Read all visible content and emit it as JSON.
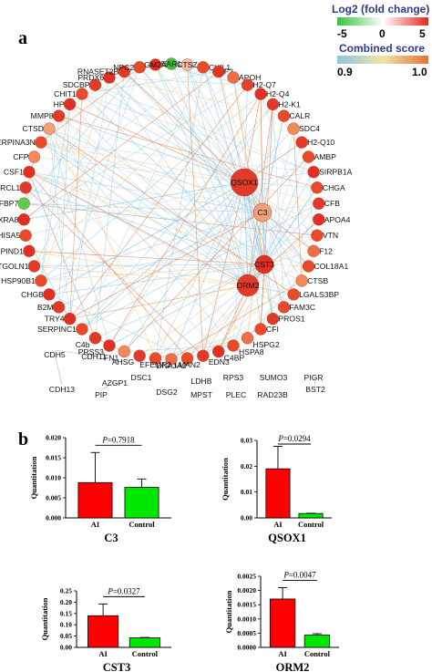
{
  "panel_a": {
    "label": "a",
    "legend": {
      "fold_title": "Log2 (fold change)",
      "fold_ticks": [
        "-5",
        "0",
        "5"
      ],
      "fold_colors": [
        "#35c23a",
        "#ffffff",
        "#e8261e"
      ],
      "score_title": "Combined score",
      "score_ticks": [
        "0.9",
        "1.0"
      ],
      "score_colors": [
        "#8cc5e3",
        "#f0e3a6",
        "#e7713a"
      ]
    },
    "ring_nodes": [
      {
        "label": "EAR1",
        "color": "#3cc33c"
      },
      {
        "label": "CTSZ",
        "color": "#f7c0a0"
      },
      {
        "label": "CHIL1",
        "color": "#e84a2a"
      },
      {
        "label": "F2",
        "color": "#e03425"
      },
      {
        "label": "APOH",
        "color": "#ee6e48"
      },
      {
        "label": "H2-Q7",
        "color": "#e8402a"
      },
      {
        "label": "H2-Q4",
        "color": "#e03025"
      },
      {
        "label": "H2-K1",
        "color": "#e23a28"
      },
      {
        "label": "CALR",
        "color": "#e84a2a"
      },
      {
        "label": "SDC4",
        "color": "#f08a5a"
      },
      {
        "label": "H2-Q10",
        "color": "#e23a28"
      },
      {
        "label": "AMBP",
        "color": "#e84a2a"
      },
      {
        "label": "SIRPB1A",
        "color": "#e03025"
      },
      {
        "label": "CHGA",
        "color": "#e84a2a"
      },
      {
        "label": "CFB",
        "color": "#e23a28"
      },
      {
        "label": "APOA4",
        "color": "#e03025"
      },
      {
        "label": "VTN",
        "color": "#e84a2a"
      },
      {
        "label": "F12",
        "color": "#ee6e48"
      },
      {
        "label": "COL18A1",
        "color": "#e84a2a"
      },
      {
        "label": "CTSB",
        "color": "#f08a5a"
      },
      {
        "label": "LGALS3BP",
        "color": "#e84a2a"
      },
      {
        "label": "FAM3C",
        "color": "#e84a2a"
      },
      {
        "label": "PROS1",
        "color": "#e23a28"
      },
      {
        "label": "CFI",
        "color": "#e84a2a"
      },
      {
        "label": "HSPG2",
        "color": "#ee6e48"
      },
      {
        "label": "HSPA8",
        "color": "#e84a2a"
      },
      {
        "label": "C4BP",
        "color": "#e03025"
      },
      {
        "label": "EDN3",
        "color": "#e23a28"
      },
      {
        "label": "LMAN2",
        "color": "#e84a2a"
      },
      {
        "label": "DNAJA2",
        "color": "#ee6e48"
      },
      {
        "label": "EFEMP2",
        "color": "#e84a2a"
      },
      {
        "label": "AHSG",
        "color": "#e23a28"
      },
      {
        "label": "FN1",
        "color": "#f08a5a"
      },
      {
        "label": "PRSS3",
        "color": "#e03025"
      },
      {
        "label": "C4b",
        "color": "#e23a28"
      },
      {
        "label": "SERPINC1",
        "color": "#e84a2a"
      },
      {
        "label": "TRY4",
        "color": "#e03025"
      },
      {
        "label": "B2M",
        "color": "#e23a28"
      },
      {
        "label": "CHGB",
        "color": "#e03025"
      },
      {
        "label": "HSP90B1",
        "color": "#e84a2a"
      },
      {
        "label": "TGOLN1",
        "color": "#e23a28"
      },
      {
        "label": "SERPIND1",
        "color": "#e03025"
      },
      {
        "label": "SHISA5",
        "color": "#e84a2a"
      },
      {
        "label": "MXRA8",
        "color": "#e03025"
      },
      {
        "label": "IGFBP7",
        "color": "#5ccd4a"
      },
      {
        "label": "SPARCL1",
        "color": "#e23a28"
      },
      {
        "label": "CSF1",
        "color": "#e03025"
      },
      {
        "label": "CFP",
        "color": "#f08a5a"
      },
      {
        "label": "SERPINA3N",
        "color": "#e84a2a"
      },
      {
        "label": "CTSD",
        "color": "#f2a07a"
      },
      {
        "label": "MMP8",
        "color": "#e23a28"
      },
      {
        "label": "HP",
        "color": "#e03025"
      },
      {
        "label": "CHIT1",
        "color": "#e84a2a"
      },
      {
        "label": "SDCBP",
        "color": "#e23a28"
      },
      {
        "label": "PRDX6",
        "color": "#e03025"
      },
      {
        "label": "RNASET2B",
        "color": "#e23a28"
      },
      {
        "label": "NPC2",
        "color": "#e84a2a"
      },
      {
        "label": "GM2A",
        "color": "#e03025"
      }
    ],
    "center_nodes": [
      {
        "label": "QSOX1",
        "color": "#e23a28"
      },
      {
        "label": "C3",
        "color": "#f2a07a"
      },
      {
        "label": "CST3",
        "color": "#e03025"
      },
      {
        "label": "ORM2",
        "color": "#e23a28"
      }
    ],
    "isolated_nodes": [
      "CDH5",
      "CDH11",
      "CDH13",
      "AZGP1",
      "PIP",
      "DSC1",
      "DSG2",
      "LDHB",
      "MPST",
      "RPS3",
      "PLEC",
      "SUMO3",
      "RAD23B",
      "PIGR",
      "BST2"
    ]
  },
  "panel_b": {
    "label": "b",
    "chart_data": [
      {
        "type": "bar",
        "title": "C3",
        "ylabel": "Quantitation",
        "categories": [
          "AI",
          "Control"
        ],
        "values": [
          0.0088,
          0.0076
        ],
        "errors": [
          0.0075,
          0.0021
        ],
        "colors": [
          "#ff0000",
          "#00e800"
        ],
        "ylim": [
          0,
          0.02
        ],
        "yticks": [
          "0.000",
          "0.005",
          "0.010",
          "0.015",
          "0.020"
        ],
        "pvalue": "=0.7918"
      },
      {
        "type": "bar",
        "title": "QSOX1",
        "ylabel": "Quantitation",
        "categories": [
          "AI",
          "Control"
        ],
        "values": [
          0.019,
          0.0017
        ],
        "errors": [
          0.0087,
          0.0001
        ],
        "colors": [
          "#ff0000",
          "#00e800"
        ],
        "ylim": [
          0,
          0.03
        ],
        "yticks": [
          "0.00",
          "0.01",
          "0.02",
          "0.03"
        ],
        "pvalue": "=0.0294"
      },
      {
        "type": "bar",
        "title": "CST3",
        "ylabel": "Quantitation",
        "categories": [
          "AI",
          "Control"
        ],
        "values": [
          0.14,
          0.042
        ],
        "errors": [
          0.052,
          0.002
        ],
        "colors": [
          "#ff0000",
          "#00e800"
        ],
        "ylim": [
          0,
          0.25
        ],
        "yticks": [
          "0.00",
          "0.05",
          "0.10",
          "0.15",
          "0.20",
          "0.25"
        ],
        "pvalue": "=0.0327"
      },
      {
        "type": "bar",
        "title": "ORM2",
        "ylabel": "Quantitation",
        "categories": [
          "AI",
          "Control"
        ],
        "values": [
          0.0017,
          0.00043
        ],
        "errors": [
          0.0004,
          5e-05
        ],
        "colors": [
          "#ff0000",
          "#00e800"
        ],
        "ylim": [
          0,
          0.0025
        ],
        "yticks": [
          "0.0000",
          "0.0005",
          "0.0010",
          "0.0015",
          "0.0020",
          "0.0025"
        ],
        "pvalue": "=0.0047"
      }
    ]
  }
}
